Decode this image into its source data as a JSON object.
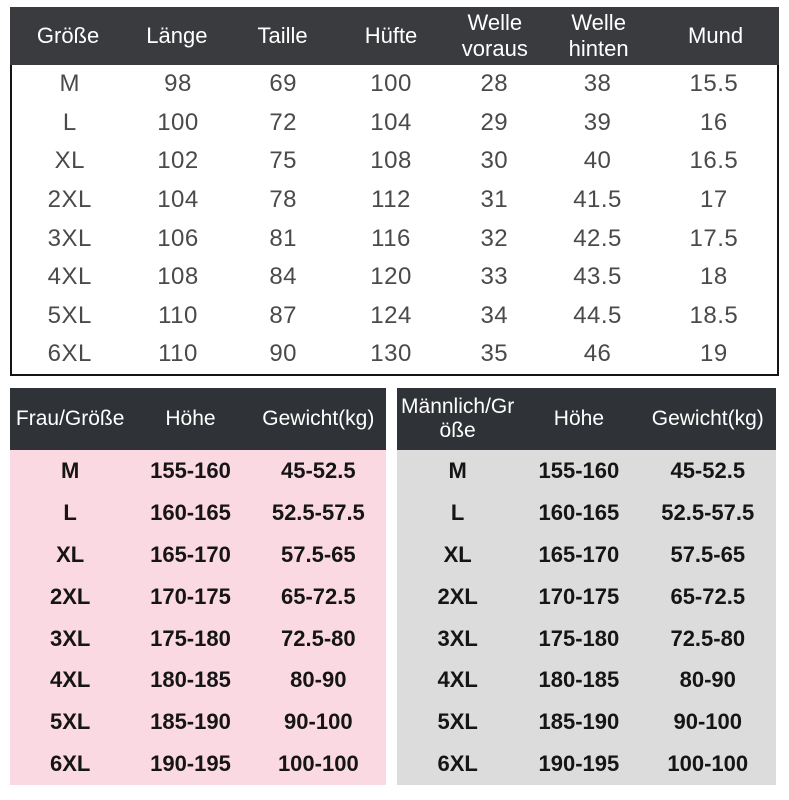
{
  "colors": {
    "header_top_bg": "#393b3e",
    "header_bottom_bg": "#2f3236",
    "women_bg": "#fbd9e3",
    "men_bg": "#dcdcdc",
    "top_body_text": "#4a4a4a",
    "bottom_body_text": "#151515",
    "header_text": "#ffffff",
    "table_border": "#141414",
    "page_bg": "#ffffff"
  },
  "chart_data": [
    {
      "type": "table",
      "title": "Garment measurements (cm)",
      "columns": [
        "Größe",
        "Länge",
        "Taille",
        "Hüfte",
        "Welle voraus",
        "Welle hinten",
        "Mund"
      ],
      "rows": [
        [
          "M",
          "98",
          "69",
          "100",
          "28",
          "38",
          "15.5"
        ],
        [
          "L",
          "100",
          "72",
          "104",
          "29",
          "39",
          "16"
        ],
        [
          "XL",
          "102",
          "75",
          "108",
          "30",
          "40",
          "16.5"
        ],
        [
          "2XL",
          "104",
          "78",
          "112",
          "31",
          "41.5",
          "17"
        ],
        [
          "3XL",
          "106",
          "81",
          "116",
          "32",
          "42.5",
          "17.5"
        ],
        [
          "4XL",
          "108",
          "84",
          "120",
          "33",
          "43.5",
          "18"
        ],
        [
          "5XL",
          "110",
          "87",
          "124",
          "34",
          "44.5",
          "18.5"
        ],
        [
          "6XL",
          "110",
          "90",
          "130",
          "35",
          "46",
          "19"
        ]
      ]
    },
    {
      "type": "table",
      "title": "Women size guide",
      "columns": [
        "Frau/Größe",
        "Höhe",
        "Gewicht(kg)"
      ],
      "rows": [
        [
          "M",
          "155-160",
          "45-52.5"
        ],
        [
          "L",
          "160-165",
          "52.5-57.5"
        ],
        [
          "XL",
          "165-170",
          "57.5-65"
        ],
        [
          "2XL",
          "170-175",
          "65-72.5"
        ],
        [
          "3XL",
          "175-180",
          "72.5-80"
        ],
        [
          "4XL",
          "180-185",
          "80-90"
        ],
        [
          "5XL",
          "185-190",
          "90-100"
        ],
        [
          "6XL",
          "190-195",
          "100-100"
        ]
      ]
    },
    {
      "type": "table",
      "title": "Men size guide",
      "columns": [
        "Männlich/Größe",
        "Höhe",
        "Gewicht(kg)"
      ],
      "rows": [
        [
          "M",
          "155-160",
          "45-52.5"
        ],
        [
          "L",
          "160-165",
          "52.5-57.5"
        ],
        [
          "XL",
          "165-170",
          "57.5-65"
        ],
        [
          "2XL",
          "170-175",
          "65-72.5"
        ],
        [
          "3XL",
          "175-180",
          "72.5-80"
        ],
        [
          "4XL",
          "180-185",
          "80-90"
        ],
        [
          "5XL",
          "185-190",
          "90-100"
        ],
        [
          "6XL",
          "190-195",
          "100-100"
        ]
      ]
    }
  ]
}
